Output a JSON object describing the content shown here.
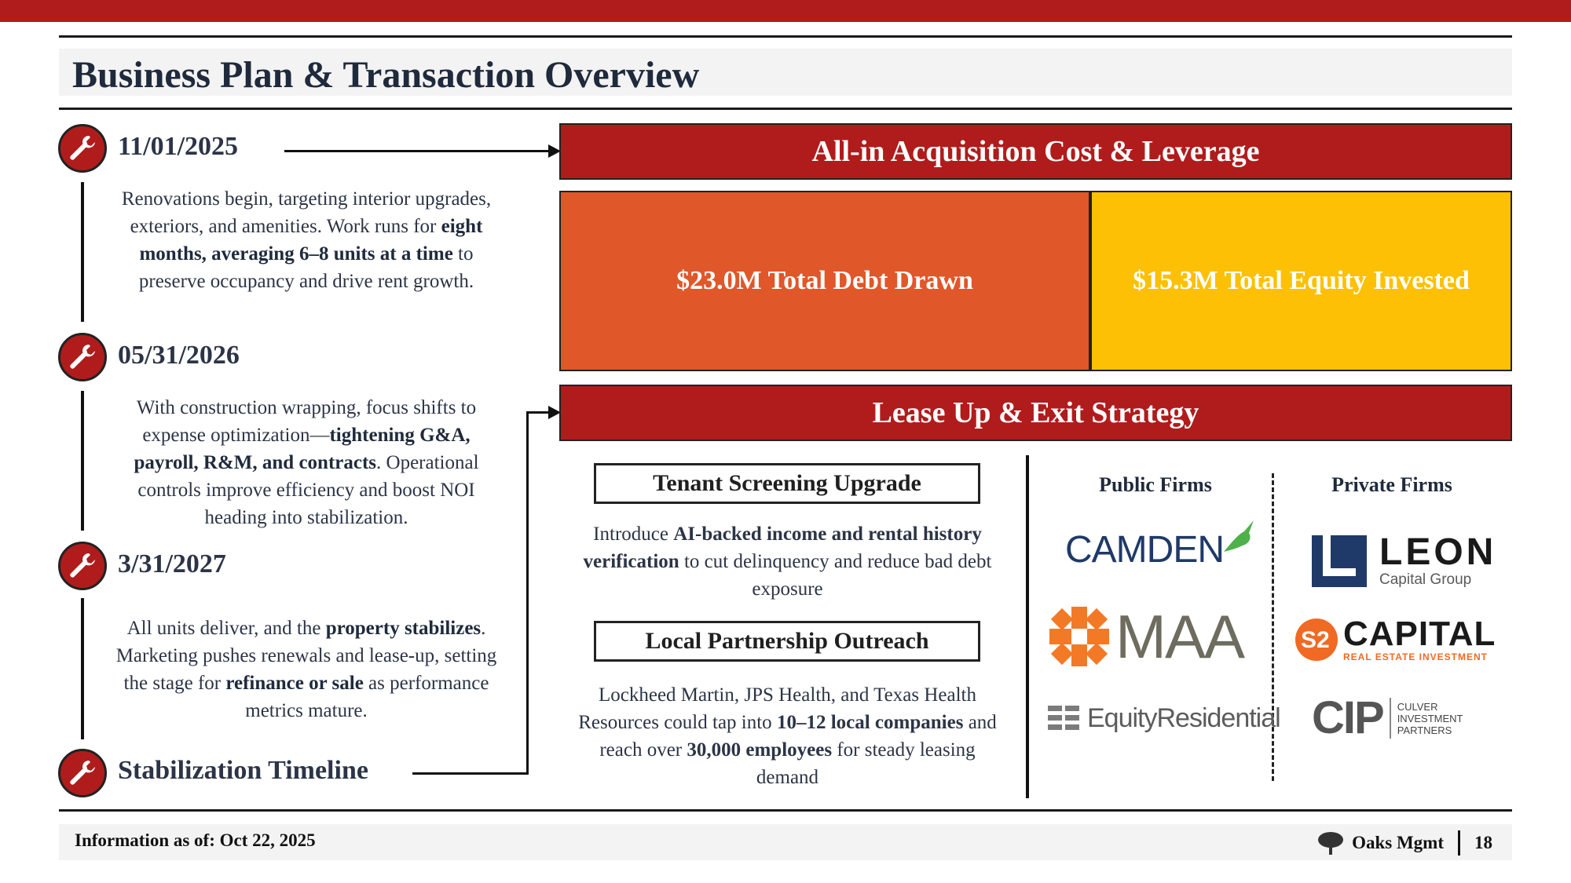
{
  "header": {
    "title": "Business Plan & Transaction Overview"
  },
  "timeline": [
    {
      "date": "11/01/2025"
    },
    {
      "date": "05/31/2026"
    },
    {
      "date": "3/31/2027"
    },
    {
      "date": "Stabilization Timeline"
    }
  ],
  "m1": {
    "t1": "Renovations begin, targeting interior upgrades, exteriors, and amenities. Work runs for ",
    "b1": "eight months, averaging 6–8 units at a time",
    "t2": " to preserve occupancy and drive rent growth."
  },
  "m2": {
    "t1": "With construction wrapping, focus shifts to expense optimization—",
    "b1": "tightening G&A, payroll, R&M, and contracts",
    "t2": ". Operational controls improve efficiency and boost NOI heading into stabilization."
  },
  "m3": {
    "t1": "All units deliver, and the ",
    "b1": "property stabilizes",
    "t2": ". Marketing pushes renewals and lease-up, setting the stage for ",
    "b2": "refinance or sale",
    "t3": " as performance metrics mature."
  },
  "acquisition": {
    "header": "All-in Acquisition Cost & Leverage",
    "debt": "$23.0M Total Debt Drawn",
    "equity": "$15.3M Total Equity Invested",
    "debt_color": "#e0572a",
    "equity_color": "#fdc005"
  },
  "lease": {
    "header": "Lease Up & Exit Strategy",
    "screening": {
      "label": "Tenant Screening Upgrade",
      "t1": "Introduce ",
      "b1": "AI-backed income and rental history verification",
      "t2": " to cut delinquency and reduce bad debt exposure"
    },
    "partnership": {
      "label": "Local Partnership Outreach",
      "t1": "Lockheed Martin, JPS Health, and Texas Health Resources could tap into ",
      "b1": "10–12 local companies",
      "t2": " and reach over ",
      "b2": "30,000 employees",
      "t3": " for steady leasing demand"
    },
    "public_heading": "Public Firms",
    "private_heading": "Private Firms",
    "public_logos": {
      "camden": "CAMDEN",
      "maa": "MAA",
      "equity": "EquityResidential"
    },
    "private_logos": {
      "leon": "LEON",
      "leon_sub": "Capital Group",
      "s2": "CAPITAL",
      "s2_sub": "REAL ESTATE INVESTMENT",
      "cip": "CIP",
      "cip_sub1": "CULVER",
      "cip_sub2": "INVESTMENT",
      "cip_sub3": "PARTNERS"
    }
  },
  "footer": {
    "info": "Information as of: Oct 22, 2025",
    "company": "Oaks Mgmt",
    "page": "18"
  },
  "colors": {
    "accent": "#b01c1c",
    "text": "#1f2a3c"
  }
}
